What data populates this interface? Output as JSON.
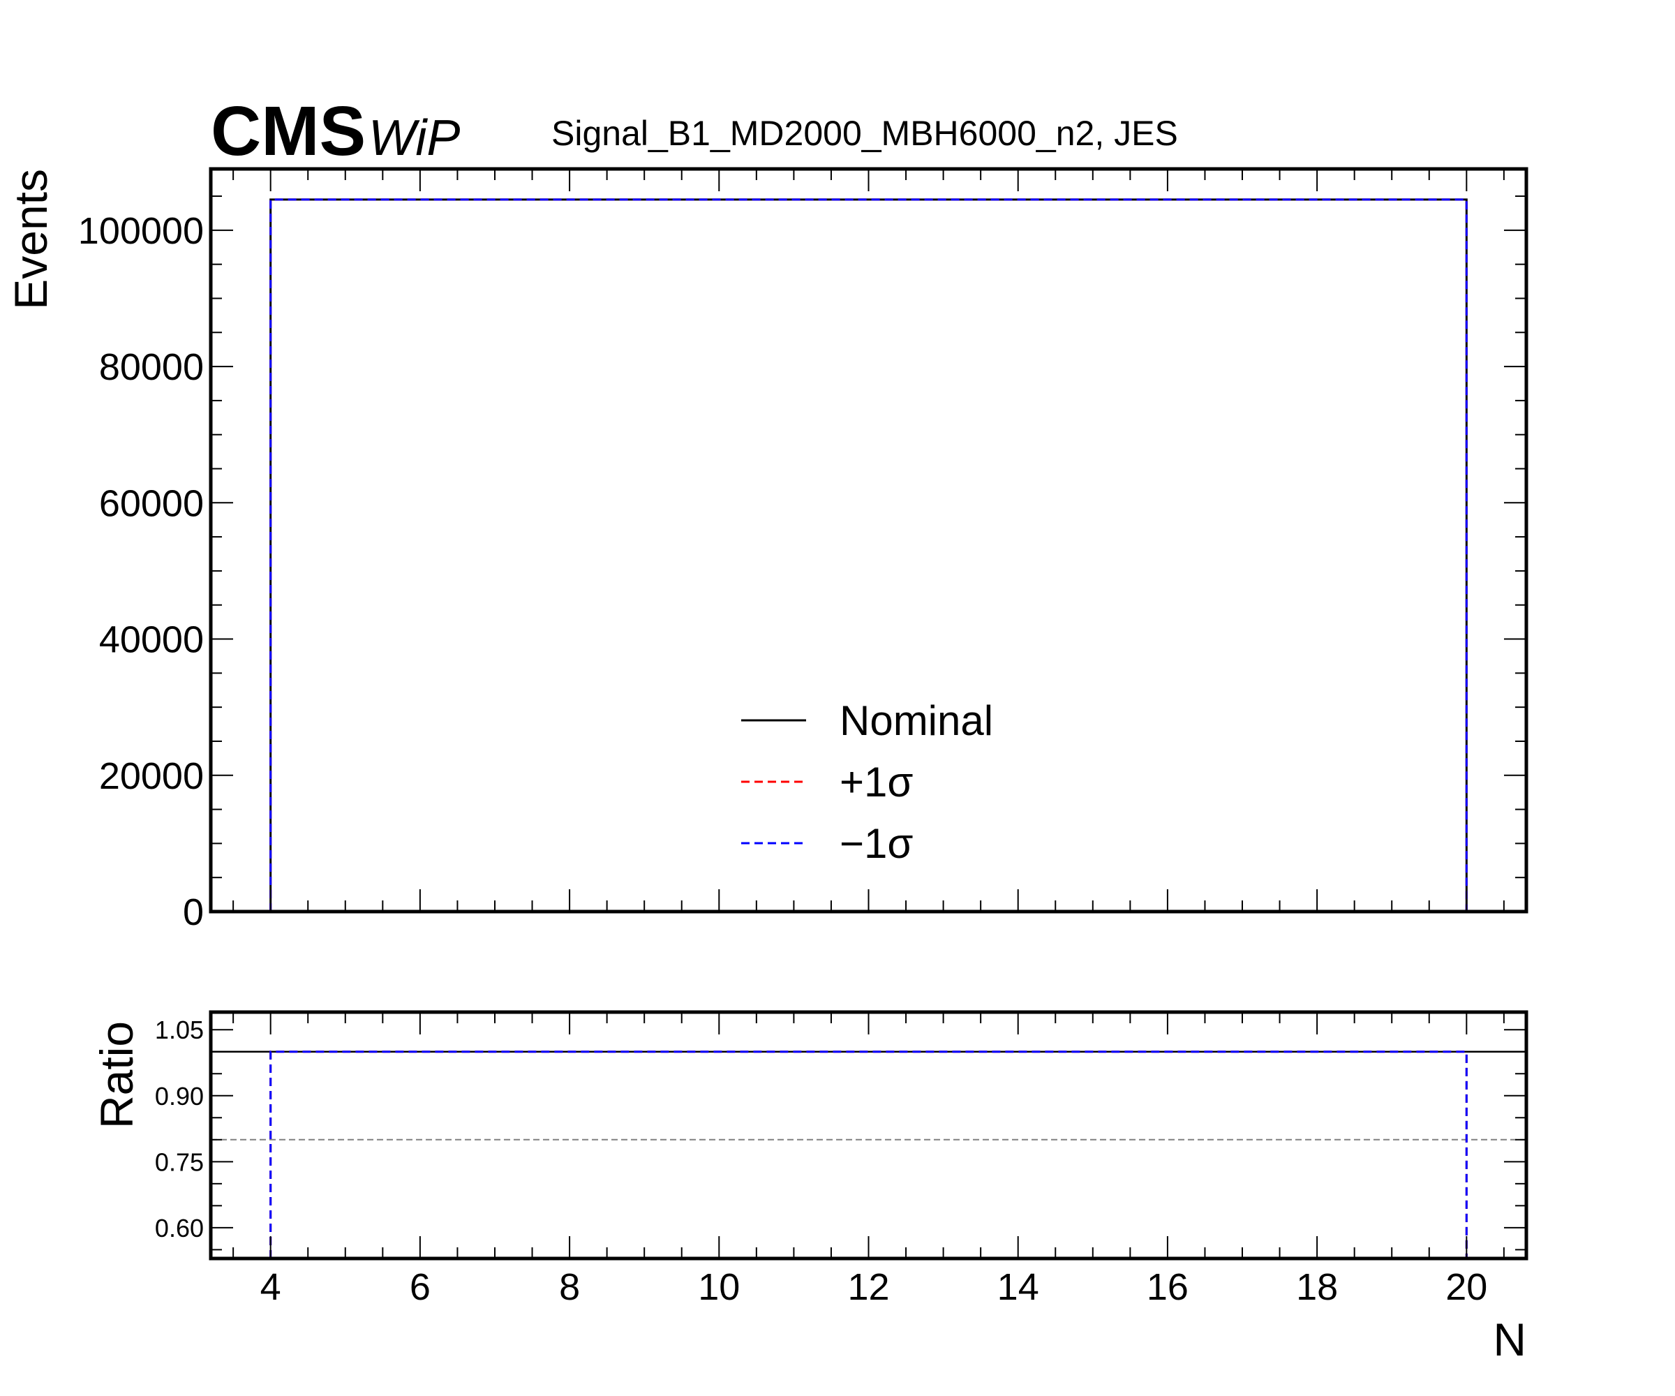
{
  "header": {
    "logo": "CMS",
    "extra_text": "WiP",
    "title": "Signal_B1_MD2000_MBH6000_n2, JES"
  },
  "chart_data": [
    {
      "panel": "main",
      "type": "line",
      "style": "step",
      "xlim": [
        3.2,
        20.8
      ],
      "ylim": [
        0,
        109000
      ],
      "ylabel": "Events",
      "xlabel": "",
      "yticks": [
        0,
        20000,
        40000,
        60000,
        80000,
        100000
      ],
      "ytick_labels": [
        "0",
        "20000",
        "40000",
        "60000",
        "80000",
        "100000"
      ],
      "x_edges": [
        4,
        20
      ],
      "series": [
        {
          "name": "Nominal",
          "color": "#000000",
          "dash": "solid",
          "values": [
            104500
          ]
        },
        {
          "name": "+1σ",
          "color": "#ff0000",
          "dash": "dashed",
          "values": [
            104500
          ]
        },
        {
          "name": "−1σ",
          "color": "#0000ff",
          "dash": "dashed",
          "values": [
            104500
          ]
        }
      ],
      "legend_position": "lower-center",
      "grid": false
    },
    {
      "panel": "ratio",
      "type": "line",
      "style": "step",
      "xlim": [
        3.2,
        20.8
      ],
      "ylim": [
        0.53,
        1.09
      ],
      "ylabel": "Ratio",
      "xlabel": "N",
      "xticks": [
        4,
        6,
        8,
        10,
        12,
        14,
        16,
        18,
        20
      ],
      "xtick_labels": [
        "4",
        "6",
        "8",
        "10",
        "12",
        "14",
        "16",
        "18",
        "20"
      ],
      "yticks": [
        0.6,
        0.75,
        0.9,
        1.05
      ],
      "ytick_labels": [
        "0.60",
        "0.75",
        "0.90",
        "1.05"
      ],
      "reference_lines": [
        {
          "y": 1.0,
          "color": "#000000",
          "dash": "solid"
        },
        {
          "y": 0.8,
          "color": "#808080",
          "dash": "dashed"
        }
      ],
      "x_edges": [
        4,
        20
      ],
      "series": [
        {
          "name": "+1σ",
          "color": "#ff0000",
          "dash": "dashed",
          "values": [
            1.0
          ]
        },
        {
          "name": "−1σ",
          "color": "#0000ff",
          "dash": "dashed",
          "values": [
            1.0
          ]
        }
      ],
      "grid": false
    }
  ]
}
